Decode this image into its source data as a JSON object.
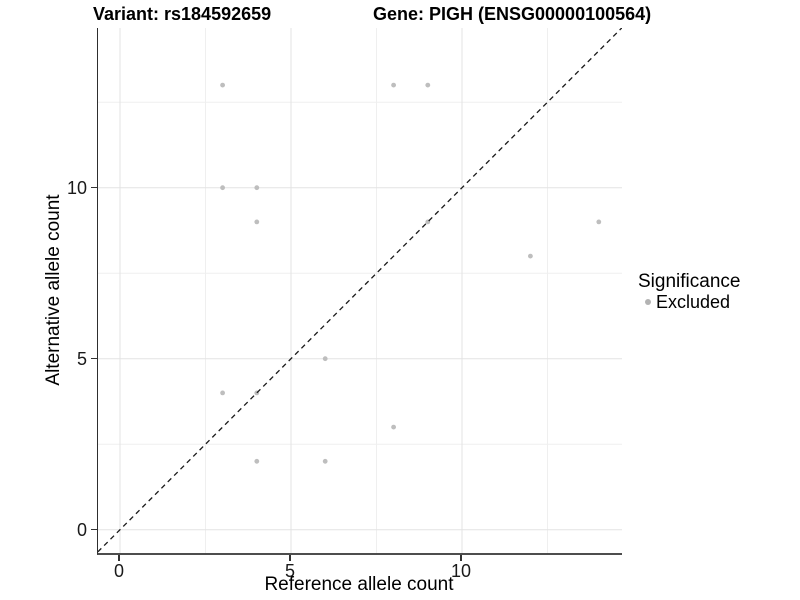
{
  "header": {
    "variant_title": "Variant: rs184592659",
    "gene_title": "Gene: PIGH (ENSG00000100564)"
  },
  "chart_data": {
    "type": "scatter",
    "xlabel": "Reference allele count",
    "ylabel": "Alternative allele count",
    "xlim": [
      -0.65,
      14.7
    ],
    "ylim": [
      -0.68,
      14.67
    ],
    "x_ticks": [
      0,
      5,
      10
    ],
    "y_ticks": [
      0,
      5,
      10
    ],
    "x_minor_gridlines": [
      2.5,
      7.5,
      12.5
    ],
    "y_minor_gridlines": [
      2.5,
      7.5,
      12.5
    ],
    "grid": "major and minor, light gray on white",
    "series": [
      {
        "name": "Excluded",
        "marker_color": "#bebebe",
        "points": [
          [
            3,
            13
          ],
          [
            8,
            13
          ],
          [
            9,
            13
          ],
          [
            3,
            10
          ],
          [
            4,
            10
          ],
          [
            4,
            9
          ],
          [
            9,
            9
          ],
          [
            14,
            9
          ],
          [
            12,
            8
          ],
          [
            6,
            5
          ],
          [
            3,
            4
          ],
          [
            4,
            4
          ],
          [
            8,
            3
          ],
          [
            4,
            2
          ],
          [
            6,
            2
          ]
        ]
      }
    ],
    "reference_line": {
      "kind": "identity y=x",
      "style": "dashed",
      "color": "#1a1a1a"
    },
    "legend": {
      "title": "Significance",
      "position": "right",
      "items": [
        {
          "label": "Excluded",
          "marker_color": "#b3b3b3"
        }
      ]
    }
  },
  "colors": {
    "background": "#ffffff",
    "axis_line": "#3c3c3c",
    "major_gridline": "#e3e3e3",
    "minor_gridline": "#efefef",
    "point": "#bebebe",
    "dashed_line": "#1a1a1a",
    "text": "#000000"
  }
}
